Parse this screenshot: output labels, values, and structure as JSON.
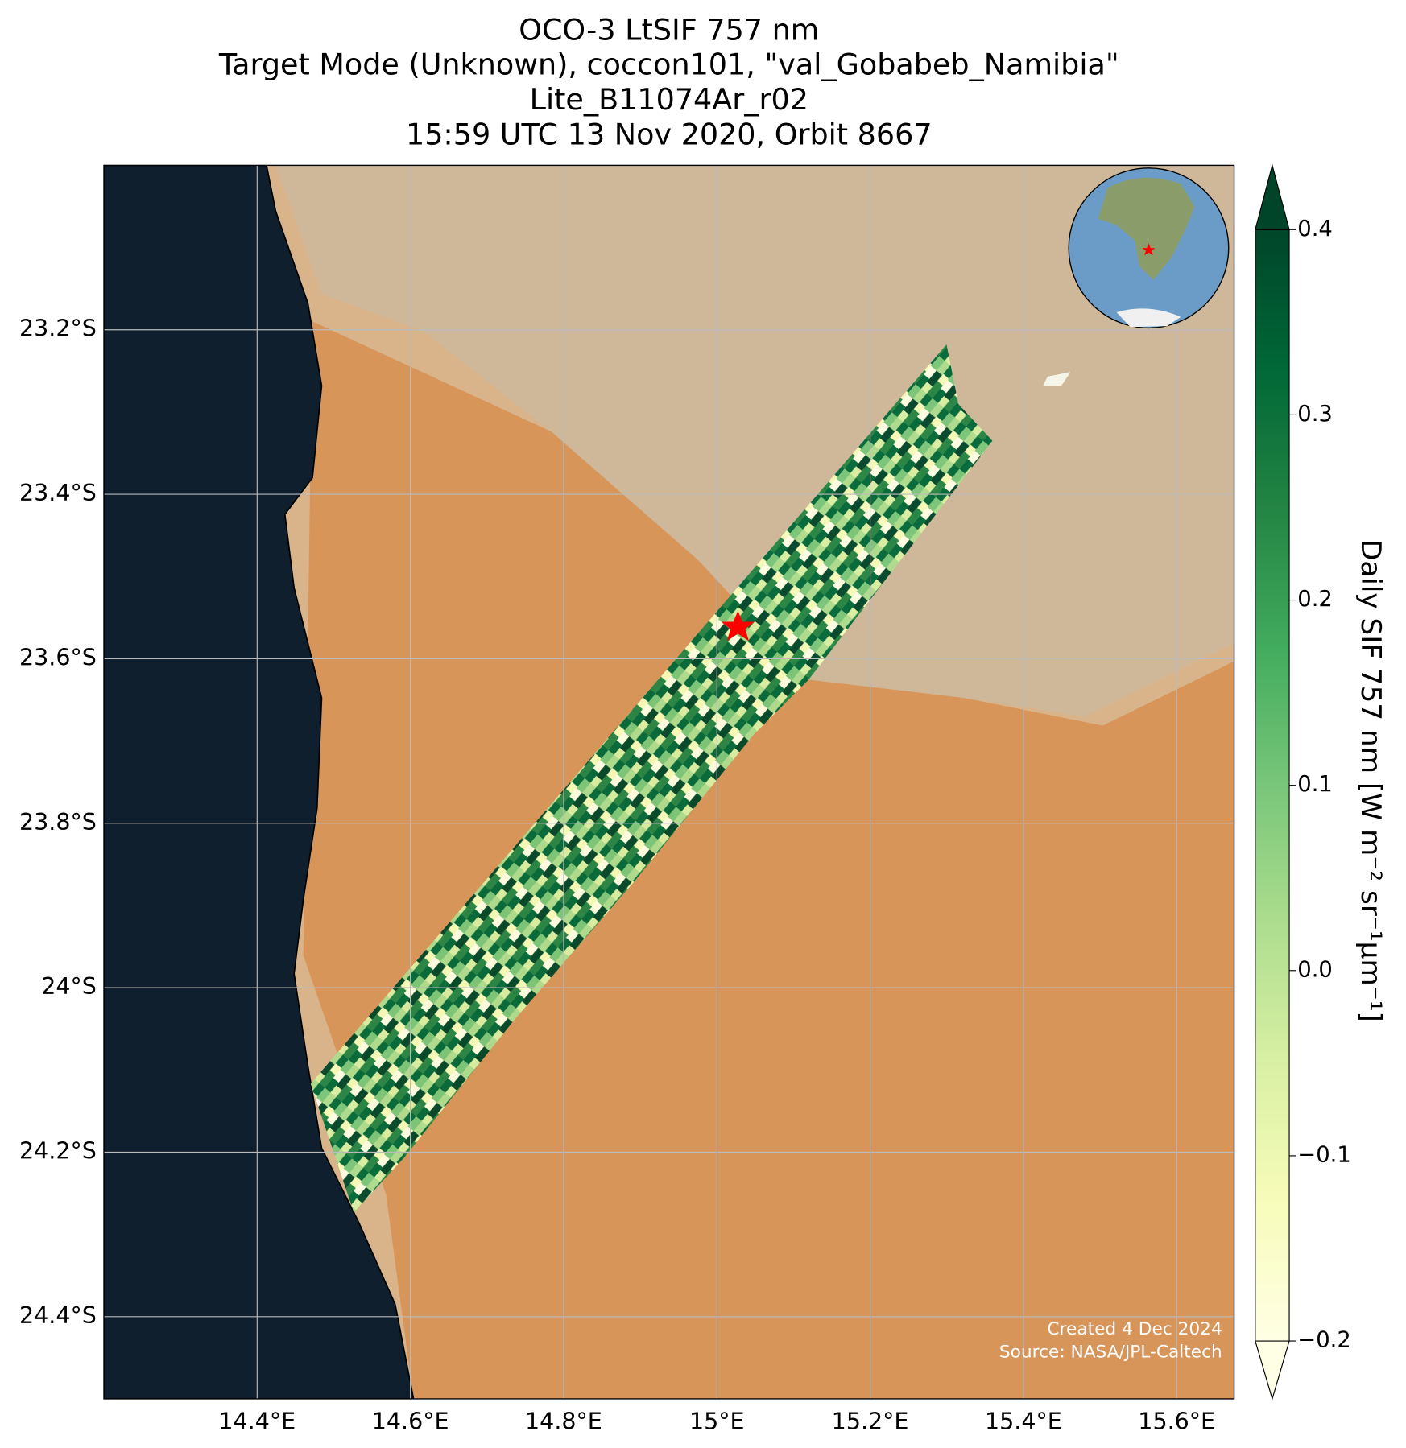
{
  "map": {
    "title_lines": [
      "OCO-3 LtSIF 757 nm",
      "Target Mode (Unknown), coccon101, \"val_Gobabeb_Namibia\"",
      "Lite_B11074Ar_r02",
      "15:59 UTC 13 Nov 2020, Orbit 8667"
    ],
    "xlim": [
      14.2,
      15.675
    ],
    "ylim": [
      -24.5,
      -23.0
    ],
    "xticks": [
      {
        "value": 14.4,
        "label": "14.4°E"
      },
      {
        "value": 14.6,
        "label": "14.6°E"
      },
      {
        "value": 14.8,
        "label": "14.8°E"
      },
      {
        "value": 15.0,
        "label": "15°E"
      },
      {
        "value": 15.2,
        "label": "15.2°E"
      },
      {
        "value": 15.4,
        "label": "15.4°E"
      },
      {
        "value": 15.6,
        "label": "15.6°E"
      }
    ],
    "yticks": [
      {
        "value": -23.2,
        "label": "23.2°S"
      },
      {
        "value": -23.4,
        "label": "23.4°S"
      },
      {
        "value": -23.6,
        "label": "23.6°S"
      },
      {
        "value": -23.8,
        "label": "23.8°S"
      },
      {
        "value": -24.0,
        "label": "24°S"
      },
      {
        "value": -24.2,
        "label": "24.2°S"
      },
      {
        "value": -24.4,
        "label": "24.4°S"
      }
    ],
    "grid": true,
    "colorbar": {
      "label": "Daily SIF 757 nm [W m⁻² sr⁻¹μm⁻¹]",
      "lim": [
        -0.2,
        0.4
      ],
      "ticks": [
        {
          "value": -0.2,
          "label": "−0.2"
        },
        {
          "value": -0.1,
          "label": "−0.1"
        },
        {
          "value": 0.0,
          "label": "0.0"
        },
        {
          "value": 0.1,
          "label": "0.1"
        },
        {
          "value": 0.2,
          "label": "0.2"
        },
        {
          "value": 0.3,
          "label": "0.3"
        },
        {
          "value": 0.4,
          "label": "0.4"
        }
      ],
      "colormap": [
        "#ffffe5",
        "#f7fcb9",
        "#d9f0a3",
        "#addd8e",
        "#78c679",
        "#41ab5d",
        "#238443",
        "#006837",
        "#004529"
      ]
    },
    "credits": [
      "Created 4 Dec 2024",
      "Source: NASA/JPL-Caltech"
    ]
  }
}
